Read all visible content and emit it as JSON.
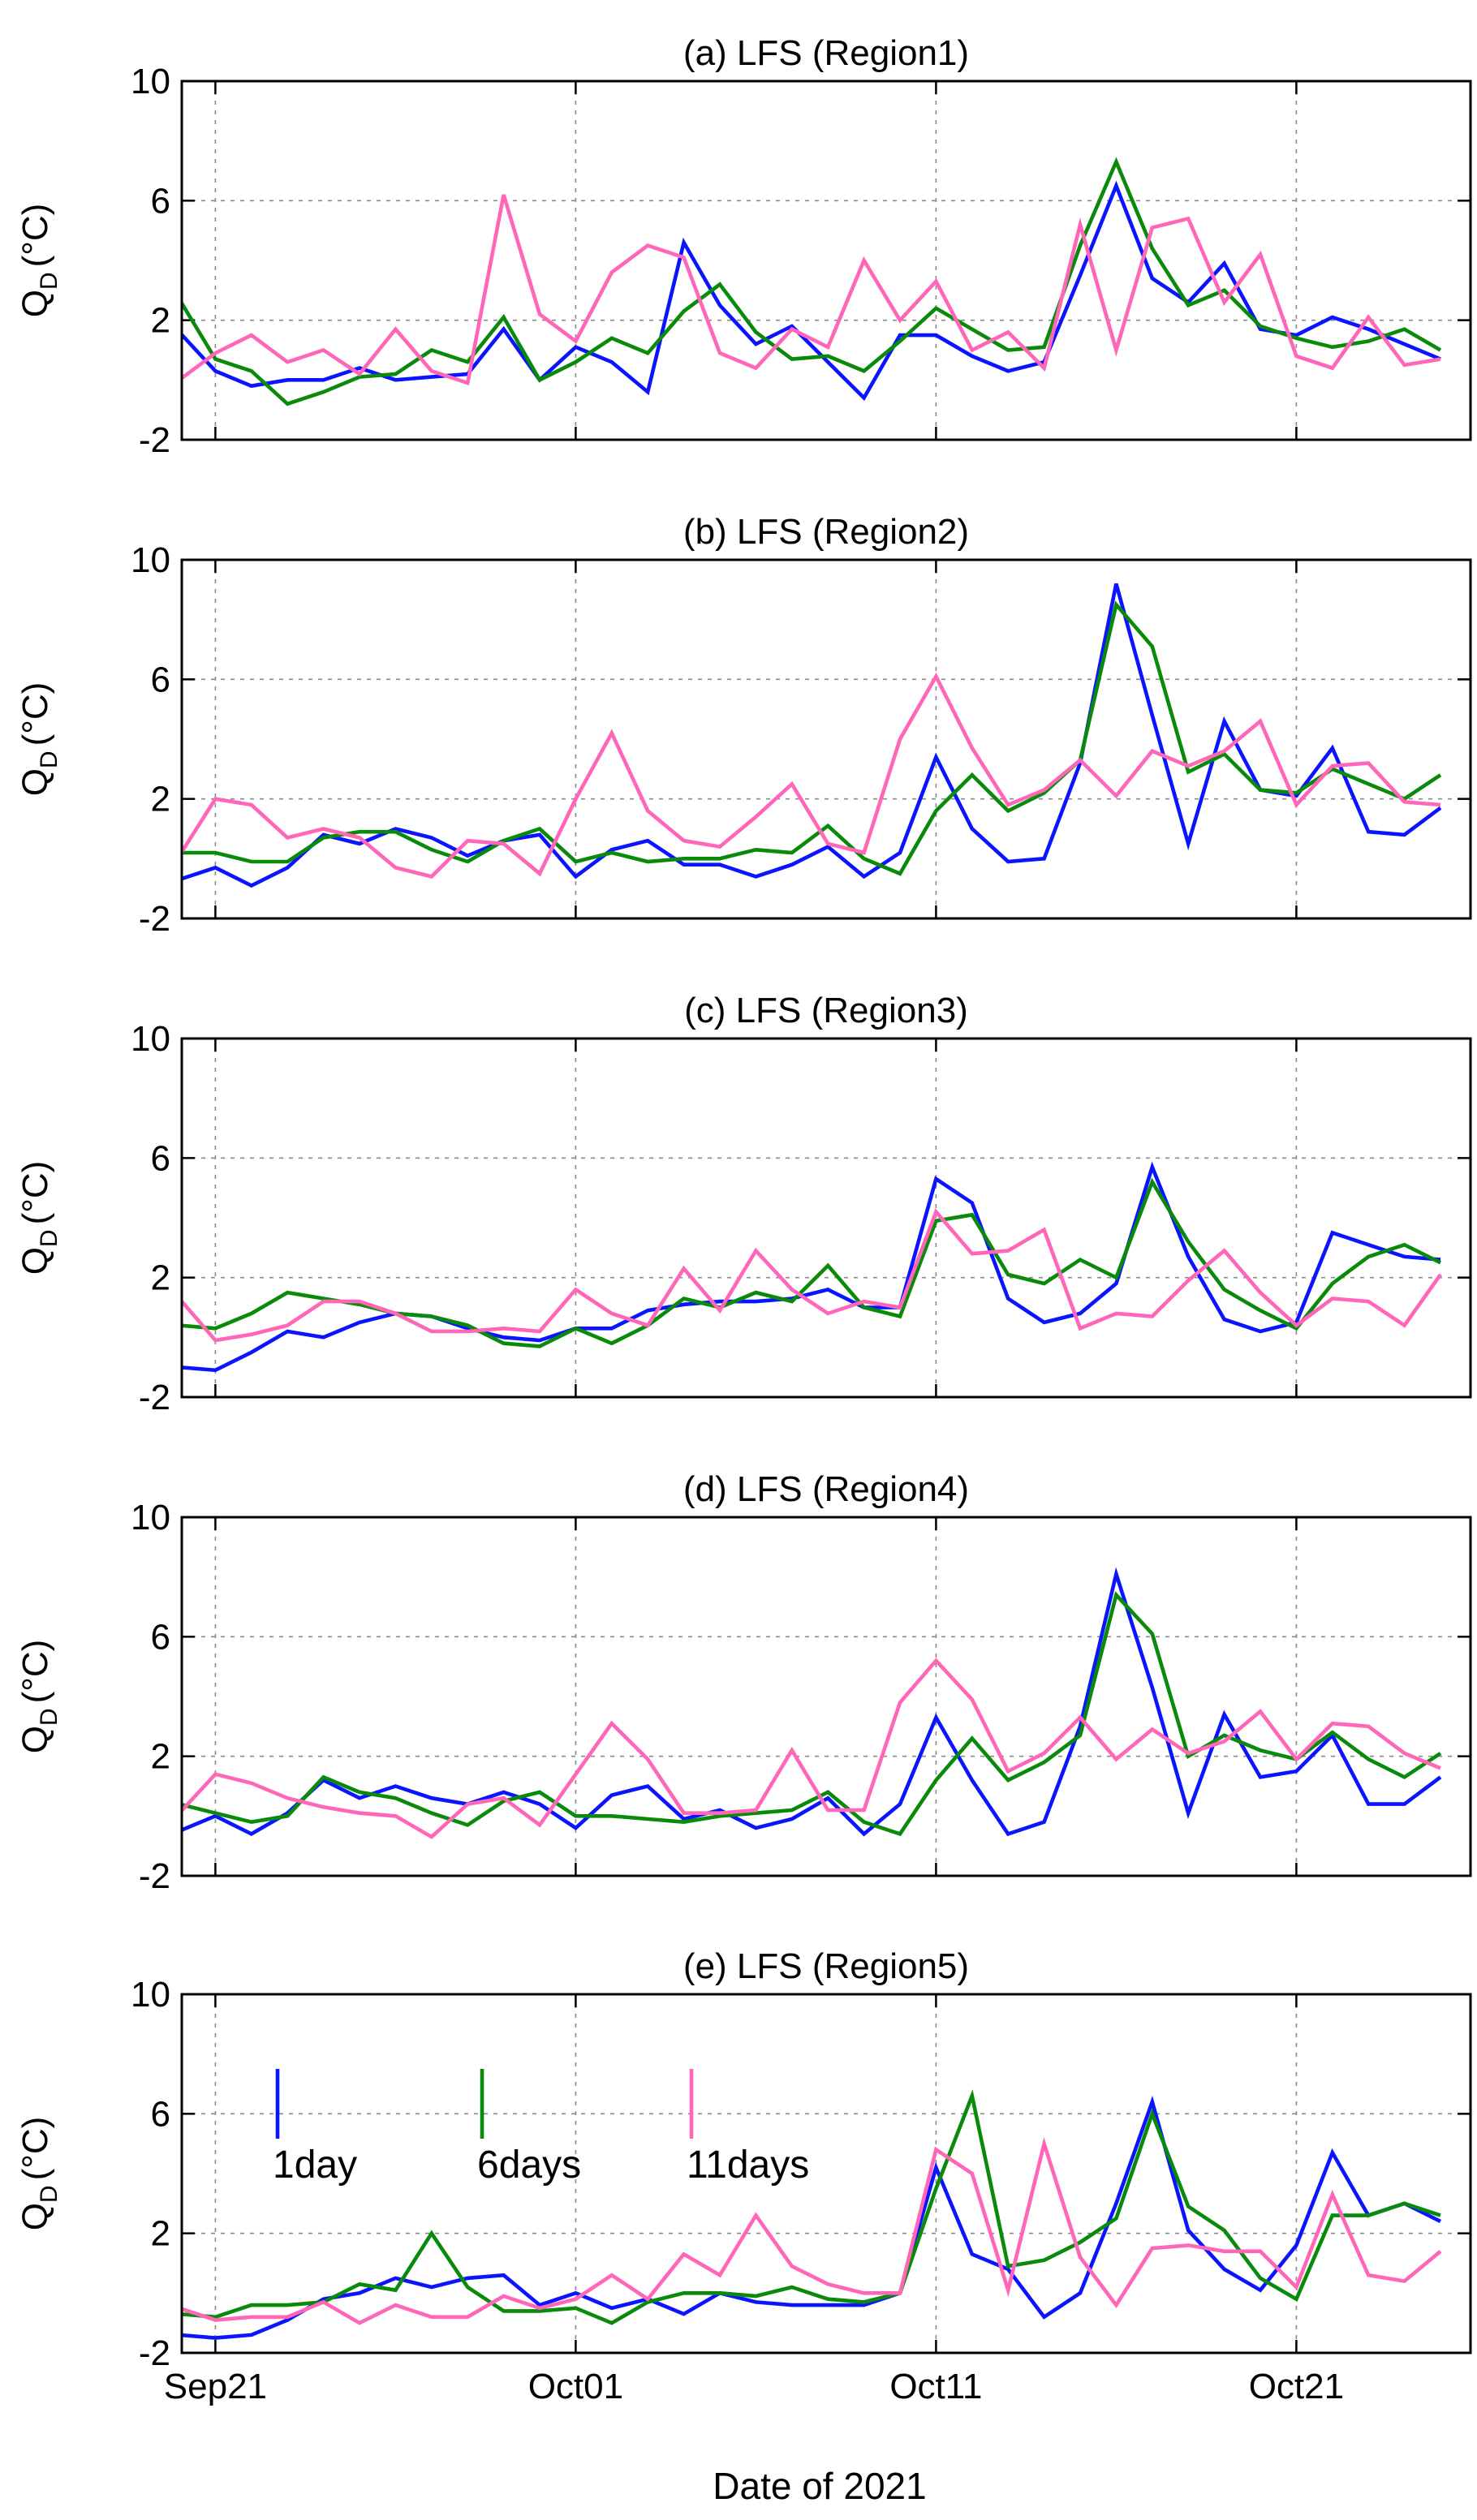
{
  "figure": {
    "xlabel": "Date of 2021",
    "legend": {
      "placement": "inside-top-left of panel (e)",
      "entries": [
        "1day",
        "6days",
        "11days"
      ]
    }
  },
  "series_style": [
    {
      "name": "1day",
      "color": "#0a14ff"
    },
    {
      "name": "6days",
      "color": "#0a8a0a"
    },
    {
      "name": "11days",
      "color": "#ff66b8"
    }
  ],
  "chart_data": [
    {
      "type": "line",
      "title": "(a) LFS (Region1)",
      "ylabel": "Q",
      "ylabel_sub": "D",
      "ylabel_unit": "(°C)",
      "ylim": [
        -2,
        10
      ],
      "yticks": [
        "-2",
        "2",
        "6",
        "10"
      ],
      "xticks": [
        "Sep21",
        "Oct01",
        "Oct11",
        "Oct21"
      ],
      "grid": true,
      "x": [
        "Sep20",
        "Sep21",
        "Sep22",
        "Sep23",
        "Sep24",
        "Sep25",
        "Sep26",
        "Sep27",
        "Sep28",
        "Sep29",
        "Sep30",
        "Oct01",
        "Oct02",
        "Oct03",
        "Oct04",
        "Oct05",
        "Oct06",
        "Oct07",
        "Oct08",
        "Oct09",
        "Oct10",
        "Oct11",
        "Oct12",
        "Oct13",
        "Oct14",
        "Oct15",
        "Oct16",
        "Oct17",
        "Oct18",
        "Oct19",
        "Oct20",
        "Oct21",
        "Oct22",
        "Oct23",
        "Oct24",
        "Oct25"
      ],
      "series": [
        {
          "name": "1day",
          "values": [
            1.6,
            0.3,
            -0.2,
            0.0,
            0.0,
            0.4,
            0.0,
            0.1,
            0.2,
            1.7,
            0.0,
            1.1,
            0.6,
            -0.4,
            4.6,
            2.5,
            1.2,
            1.8,
            0.6,
            -0.6,
            1.5,
            1.5,
            0.8,
            0.3,
            0.6,
            3.5,
            6.5,
            3.4,
            2.6,
            3.9,
            1.7,
            1.5,
            2.1,
            1.7,
            1.2,
            0.7
          ]
        },
        {
          "name": "6days",
          "values": [
            2.7,
            0.7,
            0.3,
            -0.8,
            -0.4,
            0.1,
            0.2,
            1.0,
            0.6,
            2.1,
            0.0,
            0.6,
            1.4,
            0.9,
            2.3,
            3.2,
            1.6,
            0.7,
            0.8,
            0.3,
            1.3,
            2.4,
            1.7,
            1.0,
            1.1,
            4.5,
            7.3,
            4.4,
            2.5,
            3.0,
            1.8,
            1.4,
            1.1,
            1.3,
            1.7,
            1.0
          ]
        },
        {
          "name": "11days",
          "values": [
            0.0,
            0.9,
            1.5,
            0.6,
            1.0,
            0.2,
            1.7,
            0.3,
            -0.1,
            6.2,
            2.2,
            1.3,
            3.6,
            4.5,
            4.1,
            0.9,
            0.4,
            1.7,
            1.1,
            4.0,
            2.0,
            3.3,
            1.0,
            1.6,
            0.4,
            5.2,
            1.0,
            5.1,
            5.4,
            2.6,
            4.2,
            0.8,
            0.4,
            2.1,
            0.5,
            0.7
          ]
        }
      ]
    },
    {
      "type": "line",
      "title": "(b) LFS (Region2)",
      "ylabel": "Q",
      "ylabel_sub": "D",
      "ylabel_unit": "(°C)",
      "ylim": [
        -2,
        10
      ],
      "yticks": [
        "-2",
        "2",
        "6",
        "10"
      ],
      "xticks": [
        "Sep21",
        "Oct01",
        "Oct11",
        "Oct21"
      ],
      "grid": true,
      "x": [
        "Sep20",
        "Sep21",
        "Sep22",
        "Sep23",
        "Sep24",
        "Sep25",
        "Sep26",
        "Sep27",
        "Sep28",
        "Sep29",
        "Sep30",
        "Oct01",
        "Oct02",
        "Oct03",
        "Oct04",
        "Oct05",
        "Oct06",
        "Oct07",
        "Oct08",
        "Oct09",
        "Oct10",
        "Oct11",
        "Oct12",
        "Oct13",
        "Oct14",
        "Oct15",
        "Oct16",
        "Oct17",
        "Oct18",
        "Oct19",
        "Oct20",
        "Oct21",
        "Oct22",
        "Oct23",
        "Oct24",
        "Oct25"
      ],
      "series": [
        {
          "name": "1day",
          "values": [
            -0.7,
            -0.3,
            -0.9,
            -0.3,
            0.8,
            0.5,
            1.0,
            0.7,
            0.1,
            0.6,
            0.8,
            -0.6,
            0.3,
            0.6,
            -0.2,
            -0.2,
            -0.6,
            -0.2,
            0.4,
            -0.6,
            0.2,
            3.4,
            1.0,
            -0.1,
            0.0,
            3.2,
            9.2,
            4.8,
            0.5,
            4.6,
            2.3,
            2.1,
            3.7,
            0.9,
            0.8,
            1.7
          ]
        },
        {
          "name": "6days",
          "values": [
            0.2,
            0.2,
            -0.1,
            -0.1,
            0.7,
            0.9,
            0.9,
            0.3,
            -0.1,
            0.6,
            1.0,
            -0.1,
            0.2,
            -0.1,
            0.0,
            0.0,
            0.3,
            0.2,
            1.1,
            0.0,
            -0.5,
            1.6,
            2.8,
            1.6,
            2.2,
            3.3,
            8.5,
            7.1,
            2.9,
            3.5,
            2.3,
            2.2,
            3.0,
            2.5,
            2.0,
            2.8
          ]
        },
        {
          "name": "11days",
          "values": [
            0.1,
            2.0,
            1.8,
            0.7,
            1.0,
            0.7,
            -0.3,
            -0.6,
            0.6,
            0.5,
            -0.5,
            2.0,
            4.2,
            1.6,
            0.6,
            0.4,
            1.4,
            2.5,
            0.5,
            0.2,
            4.0,
            6.1,
            3.7,
            1.8,
            2.3,
            3.3,
            2.1,
            3.6,
            3.1,
            3.6,
            4.6,
            1.8,
            3.1,
            3.2,
            1.9,
            1.8
          ]
        }
      ]
    },
    {
      "type": "line",
      "title": "(c) LFS (Region3)",
      "ylabel": "Q",
      "ylabel_sub": "D",
      "ylabel_unit": "(°C)",
      "ylim": [
        -2,
        10
      ],
      "yticks": [
        "-2",
        "2",
        "6",
        "10"
      ],
      "xticks": [
        "Sep21",
        "Oct01",
        "Oct11",
        "Oct21"
      ],
      "grid": true,
      "x": [
        "Sep20",
        "Sep21",
        "Sep22",
        "Sep23",
        "Sep24",
        "Sep25",
        "Sep26",
        "Sep27",
        "Sep28",
        "Sep29",
        "Sep30",
        "Oct01",
        "Oct02",
        "Oct03",
        "Oct04",
        "Oct05",
        "Oct06",
        "Oct07",
        "Oct08",
        "Oct09",
        "Oct10",
        "Oct11",
        "Oct12",
        "Oct13",
        "Oct14",
        "Oct15",
        "Oct16",
        "Oct17",
        "Oct18",
        "Oct19",
        "Oct20",
        "Oct21",
        "Oct22",
        "Oct23",
        "Oct24",
        "Oct25"
      ],
      "series": [
        {
          "name": "1day",
          "values": [
            -1.0,
            -1.1,
            -0.5,
            0.2,
            0.0,
            0.5,
            0.8,
            0.7,
            0.3,
            0.0,
            -0.1,
            0.3,
            0.3,
            0.9,
            1.1,
            1.2,
            1.2,
            1.3,
            1.6,
            1.0,
            1.0,
            5.3,
            4.5,
            1.3,
            0.5,
            0.8,
            1.8,
            5.7,
            2.7,
            0.6,
            0.2,
            0.5,
            3.5,
            3.1,
            2.7,
            2.6
          ]
        },
        {
          "name": "6days",
          "values": [
            0.4,
            0.3,
            0.8,
            1.5,
            1.3,
            1.1,
            0.8,
            0.7,
            0.4,
            -0.2,
            -0.3,
            0.3,
            -0.2,
            0.4,
            1.3,
            1.0,
            1.5,
            1.2,
            2.4,
            1.0,
            0.7,
            3.9,
            4.1,
            2.1,
            1.8,
            2.6,
            2.0,
            5.2,
            3.2,
            1.6,
            0.9,
            0.3,
            1.8,
            2.7,
            3.1,
            2.5
          ]
        },
        {
          "name": "11days",
          "values": [
            1.3,
            -0.1,
            0.1,
            0.4,
            1.2,
            1.2,
            0.8,
            0.2,
            0.2,
            0.3,
            0.2,
            1.6,
            0.8,
            0.4,
            2.3,
            0.9,
            2.9,
            1.6,
            0.8,
            1.2,
            1.0,
            4.2,
            2.8,
            2.9,
            3.6,
            0.3,
            0.8,
            0.7,
            1.9,
            2.9,
            1.5,
            0.4,
            1.3,
            1.2,
            0.4,
            2.1
          ]
        }
      ]
    },
    {
      "type": "line",
      "title": "(d) LFS (Region4)",
      "ylabel": "Q",
      "ylabel_sub": "D",
      "ylabel_unit": "(°C)",
      "ylim": [
        -2,
        10
      ],
      "yticks": [
        "-2",
        "2",
        "6",
        "10"
      ],
      "xticks": [
        "Sep21",
        "Oct01",
        "Oct11",
        "Oct21"
      ],
      "grid": true,
      "x": [
        "Sep20",
        "Sep21",
        "Sep22",
        "Sep23",
        "Sep24",
        "Sep25",
        "Sep26",
        "Sep27",
        "Sep28",
        "Sep29",
        "Sep30",
        "Oct01",
        "Oct02",
        "Oct03",
        "Oct04",
        "Oct05",
        "Oct06",
        "Oct07",
        "Oct08",
        "Oct09",
        "Oct10",
        "Oct11",
        "Oct12",
        "Oct13",
        "Oct14",
        "Oct15",
        "Oct16",
        "Oct17",
        "Oct18",
        "Oct19",
        "Oct20",
        "Oct21",
        "Oct22",
        "Oct23",
        "Oct24",
        "Oct25"
      ],
      "series": [
        {
          "name": "1day",
          "values": [
            -0.5,
            0.0,
            -0.6,
            0.1,
            1.2,
            0.6,
            1.0,
            0.6,
            0.4,
            0.8,
            0.4,
            -0.4,
            0.7,
            1.0,
            -0.1,
            0.2,
            -0.4,
            -0.1,
            0.6,
            -0.6,
            0.4,
            3.3,
            1.2,
            -0.6,
            -0.2,
            3.0,
            8.1,
            4.3,
            0.1,
            3.4,
            1.3,
            1.5,
            2.7,
            0.4,
            0.4,
            1.3
          ]
        },
        {
          "name": "6days",
          "values": [
            0.4,
            0.1,
            -0.2,
            0.0,
            1.3,
            0.8,
            0.6,
            0.1,
            -0.3,
            0.5,
            0.8,
            0.0,
            0.0,
            -0.1,
            -0.2,
            0.0,
            0.1,
            0.2,
            0.8,
            -0.2,
            -0.6,
            1.2,
            2.6,
            1.2,
            1.8,
            2.7,
            7.4,
            6.1,
            2.0,
            2.7,
            2.2,
            1.9,
            2.8,
            1.9,
            1.3,
            2.1
          ]
        },
        {
          "name": "11days",
          "values": [
            0.1,
            1.4,
            1.1,
            0.6,
            0.3,
            0.1,
            0.0,
            -0.7,
            0.4,
            0.6,
            -0.3,
            1.4,
            3.1,
            1.9,
            0.1,
            0.1,
            0.2,
            2.2,
            0.2,
            0.2,
            3.8,
            5.2,
            3.9,
            1.5,
            2.1,
            3.3,
            1.9,
            2.9,
            2.1,
            2.5,
            3.5,
            1.9,
            3.1,
            3.0,
            2.1,
            1.6
          ]
        }
      ]
    },
    {
      "type": "line",
      "title": "(e) LFS (Region5)",
      "ylabel": "Q",
      "ylabel_sub": "D",
      "ylabel_unit": "(°C)",
      "ylim": [
        -2,
        10
      ],
      "yticks": [
        "-2",
        "2",
        "6",
        "10"
      ],
      "xticks": [
        "Sep21",
        "Oct01",
        "Oct11",
        "Oct21"
      ],
      "grid": true,
      "x": [
        "Sep20",
        "Sep21",
        "Sep22",
        "Sep23",
        "Sep24",
        "Sep25",
        "Sep26",
        "Sep27",
        "Sep28",
        "Sep29",
        "Sep30",
        "Oct01",
        "Oct02",
        "Oct03",
        "Oct04",
        "Oct05",
        "Oct06",
        "Oct07",
        "Oct08",
        "Oct09",
        "Oct10",
        "Oct11",
        "Oct12",
        "Oct13",
        "Oct14",
        "Oct15",
        "Oct16",
        "Oct17",
        "Oct18",
        "Oct19",
        "Oct20",
        "Oct21",
        "Oct22",
        "Oct23",
        "Oct24",
        "Oct25"
      ],
      "series": [
        {
          "name": "1day",
          "values": [
            -1.4,
            -1.5,
            -1.4,
            -0.9,
            -0.2,
            0.0,
            0.5,
            0.2,
            0.5,
            0.6,
            -0.4,
            0.0,
            -0.5,
            -0.2,
            -0.7,
            0.0,
            -0.3,
            -0.4,
            -0.4,
            -0.4,
            0.0,
            4.2,
            1.3,
            0.8,
            -0.8,
            0.0,
            3.0,
            6.4,
            2.1,
            0.8,
            0.1,
            1.6,
            4.7,
            2.6,
            3.0,
            2.4
          ]
        },
        {
          "name": "6days",
          "values": [
            -0.7,
            -0.8,
            -0.4,
            -0.4,
            -0.3,
            0.3,
            0.1,
            2.0,
            0.2,
            -0.6,
            -0.6,
            -0.5,
            -1.0,
            -0.3,
            0.0,
            0.0,
            -0.1,
            0.2,
            -0.2,
            -0.3,
            0.0,
            3.5,
            6.6,
            0.9,
            1.1,
            1.7,
            2.5,
            6.0,
            2.9,
            2.1,
            0.5,
            -0.2,
            2.6,
            2.6,
            3.0,
            2.6
          ]
        },
        {
          "name": "11days",
          "values": [
            -0.5,
            -0.9,
            -0.8,
            -0.8,
            -0.3,
            -1.0,
            -0.4,
            -0.8,
            -0.8,
            -0.1,
            -0.5,
            -0.2,
            0.6,
            -0.2,
            1.3,
            0.6,
            2.6,
            0.9,
            0.3,
            0.0,
            0.0,
            4.8,
            4.0,
            0.1,
            5.0,
            1.2,
            -0.4,
            1.5,
            1.6,
            1.4,
            1.4,
            0.2,
            3.3,
            0.6,
            0.4,
            1.4
          ]
        }
      ]
    }
  ]
}
